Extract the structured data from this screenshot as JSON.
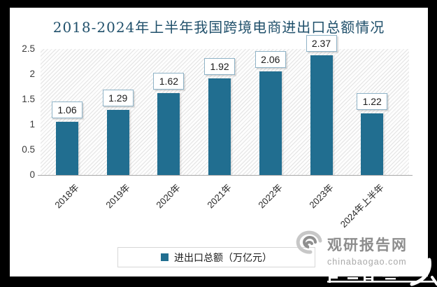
{
  "title": "2018-2024年上半年我国跨境电商进出口总额情况",
  "chart_data": {
    "type": "bar",
    "categories": [
      "2018年",
      "2019年",
      "2020年",
      "2021年",
      "2022年",
      "2023年",
      "2024年上半年"
    ],
    "values": [
      1.06,
      1.29,
      1.62,
      1.92,
      2.06,
      2.37,
      1.22
    ],
    "series_name": "进出口总额（万亿元）",
    "title": "2018-2024年上半年我国跨境电商进出口总额情况",
    "xlabel": "",
    "ylabel": "",
    "ylim": [
      0,
      2.5
    ],
    "yticks": [
      "0",
      "0.5",
      "1",
      "1.5",
      "2",
      "2.5"
    ],
    "grid": false,
    "legend_position": "bottom",
    "bar_color": "#216E90",
    "value_labels": true
  },
  "legend": {
    "label": "进出口总额（万亿元）"
  },
  "watermark": {
    "site_name": "观研报告网",
    "site_url": "chinabaogao.com"
  },
  "colors": {
    "bar": "#216E90",
    "title": "#20506B",
    "value_box_border": "#8FB3C7",
    "frame": "#000000",
    "watermark_gray": "#8d8d8d"
  }
}
